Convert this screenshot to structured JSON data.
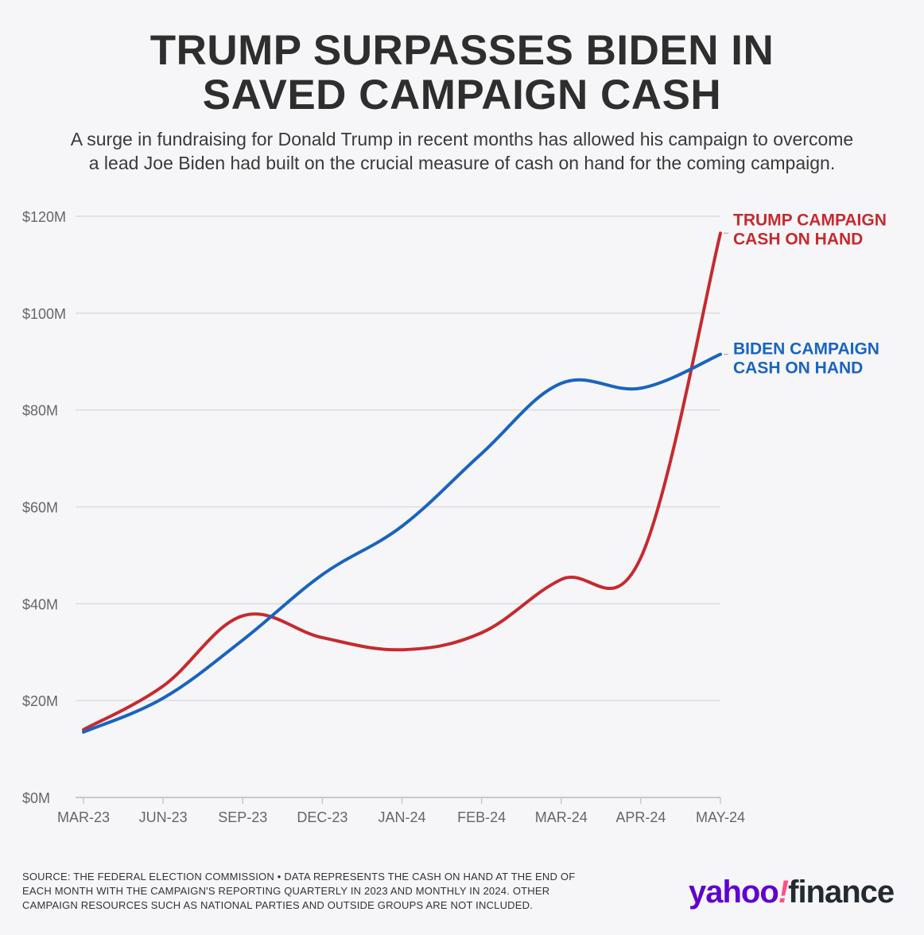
{
  "title_lines": [
    "TRUMP SURPASSES BIDEN IN",
    "SAVED CAMPAIGN CASH"
  ],
  "subtitle_lines": [
    "A surge in fundraising for Donald Trump in recent months has allowed his campaign to overcome",
    "a lead Joe Biden had built on the crucial measure of cash on hand for the coming campaign."
  ],
  "chart_data": {
    "type": "line",
    "title": "TRUMP SURPASSES BIDEN IN SAVED CAMPAIGN CASH",
    "xlabel": "",
    "ylabel": "",
    "categories": [
      "MAR-23",
      "JUN-23",
      "SEP-23",
      "DEC-23",
      "JAN-24",
      "FEB-24",
      "MAR-24",
      "APR-24",
      "MAY-24"
    ],
    "y_ticks": [
      "$0M",
      "$20M",
      "$40M",
      "$60M",
      "$80M",
      "$100M",
      "$120M"
    ],
    "y_tick_values": [
      0,
      20,
      40,
      60,
      80,
      100,
      120
    ],
    "ylim": [
      0,
      120
    ],
    "grid": true,
    "series": [
      {
        "name": "TRUMP CAMPAIGN CASH ON HAND",
        "label_lines": [
          "TRUMP CAMPAIGN",
          "CASH ON HAND"
        ],
        "color": "#c62a2f",
        "values": [
          14,
          23,
          37.5,
          33,
          30.5,
          34,
          45,
          49.5,
          116.5
        ]
      },
      {
        "name": "BIDEN CAMPAIGN CASH ON HAND",
        "label_lines": [
          "BIDEN CAMPAIGN",
          "CASH ON HAND"
        ],
        "color": "#1a64bf",
        "values": [
          13.5,
          20.5,
          32.5,
          46,
          56,
          71,
          85.5,
          84.5,
          91.5
        ]
      }
    ]
  },
  "footer_lines": [
    "SOURCE: THE FEDERAL ELECTION COMMISSION • DATA REPRESENTS THE CASH ON HAND AT THE END OF",
    "EACH MONTH WITH THE CAMPAIGN'S REPORTING QUARTERLY IN 2023 AND MONTHLY IN 2024. OTHER",
    "CAMPAIGN RESOURCES SUCH AS NATIONAL PARTIES AND OUTSIDE GROUPS ARE NOT INCLUDED."
  ],
  "logo": {
    "part1": "yahoo",
    "part2": "!",
    "part3": "finance"
  },
  "colors": {
    "grid": "#dcdce0",
    "axis_text": "#666666",
    "background": "#f6f6f8"
  }
}
